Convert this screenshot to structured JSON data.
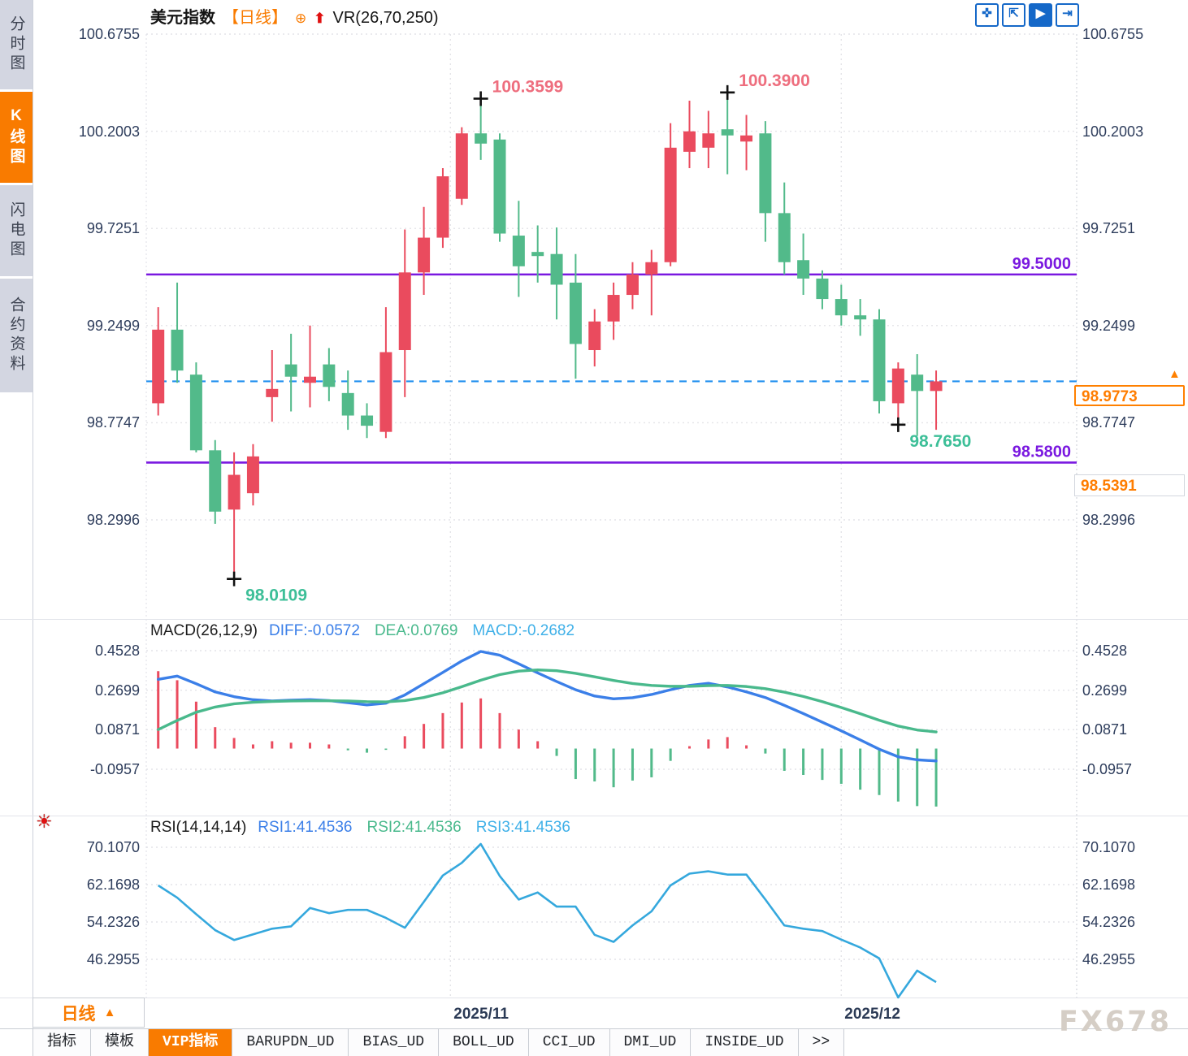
{
  "app": {
    "watermark": "FX678"
  },
  "colors": {
    "up": "#ea4b5e",
    "down": "#52ba8a",
    "accent_orange": "#f97b00",
    "purple": "#7a18e0",
    "dashed_blue": "#1f8fef",
    "diff_blue": "#3b7fe8",
    "dea_green": "#49b98c",
    "macd_cyan": "#3fb0e8",
    "rsi_line": "#35a8dd",
    "annotation_pink": "#ee6e7e",
    "annotation_green": "#3dbf98",
    "axis_text": "#2e3d5c",
    "grid": "#e4e4e8"
  },
  "sidebar": {
    "items": [
      {
        "label": "分时图",
        "active": false
      },
      {
        "label": "K线图",
        "active": true
      },
      {
        "label": "闪电图",
        "active": false
      },
      {
        "label": "合约资料",
        "active": false
      }
    ]
  },
  "header": {
    "symbol": "美元指数",
    "period": "【日线】",
    "add_icon": "⊕",
    "arrow_icon": "⬆",
    "indicator": "VR(26,70,250)"
  },
  "toolbar": {
    "icons": [
      {
        "name": "pan-crosshair-icon",
        "glyph": "✜",
        "active": false
      },
      {
        "name": "axis-scale-icon",
        "glyph": "⇱",
        "active": false
      },
      {
        "name": "auto-scroll-icon",
        "glyph": "▶",
        "active": true
      },
      {
        "name": "scroll-to-end-icon",
        "glyph": "⇥",
        "active": false
      }
    ]
  },
  "right_panel": {
    "current_price": "98.9773",
    "secondary_price": "98.5391"
  },
  "bottom": {
    "period_selector": "日线",
    "period_arrow": "▲",
    "tabs": [
      {
        "label": "指标",
        "active": false
      },
      {
        "label": "模板",
        "active": false
      },
      {
        "label": "VIP指标",
        "active": true
      },
      {
        "label": "BARUPDN_UD",
        "active": false
      },
      {
        "label": "BIAS_UD",
        "active": false
      },
      {
        "label": "BOLL_UD",
        "active": false
      },
      {
        "label": "CCI_UD",
        "active": false
      },
      {
        "label": "DMI_UD",
        "active": false
      },
      {
        "label": "INSIDE_UD",
        "active": false
      },
      {
        "label": ">>",
        "active": false
      }
    ]
  },
  "chart_data": [
    {
      "type": "candlestick",
      "title": "美元指数 日线",
      "y_ticks": [
        100.6755,
        100.2003,
        99.7251,
        99.2499,
        98.7747,
        98.2996
      ],
      "ohlc_order": [
        "open",
        "high",
        "low",
        "close"
      ],
      "candles": [
        [
          98.87,
          99.34,
          98.81,
          99.23
        ],
        [
          99.23,
          99.46,
          98.97,
          99.03
        ],
        [
          99.01,
          99.07,
          98.63,
          98.64
        ],
        [
          98.64,
          98.69,
          98.28,
          98.34
        ],
        [
          98.35,
          98.63,
          98.0109,
          98.52
        ],
        [
          98.43,
          98.67,
          98.37,
          98.61
        ],
        [
          98.9,
          99.13,
          98.78,
          98.94
        ],
        [
          99.06,
          99.21,
          98.83,
          99.0
        ],
        [
          98.97,
          99.25,
          98.85,
          99.0
        ],
        [
          99.06,
          99.14,
          98.88,
          98.95
        ],
        [
          98.92,
          99.03,
          98.74,
          98.81
        ],
        [
          98.81,
          98.87,
          98.7,
          98.76
        ],
        [
          98.73,
          99.34,
          98.7,
          99.12
        ],
        [
          99.13,
          99.72,
          98.9,
          99.51
        ],
        [
          99.51,
          99.83,
          99.4,
          99.68
        ],
        [
          99.68,
          100.02,
          99.63,
          99.98
        ],
        [
          99.87,
          100.22,
          99.84,
          100.19
        ],
        [
          100.19,
          100.3599,
          100.06,
          100.14
        ],
        [
          100.16,
          100.19,
          99.66,
          99.7
        ],
        [
          99.69,
          99.86,
          99.39,
          99.54
        ],
        [
          99.61,
          99.74,
          99.46,
          99.59
        ],
        [
          99.6,
          99.73,
          99.28,
          99.45
        ],
        [
          99.46,
          99.6,
          98.99,
          99.16
        ],
        [
          99.13,
          99.33,
          99.05,
          99.27
        ],
        [
          99.27,
          99.46,
          99.18,
          99.4
        ],
        [
          99.4,
          99.56,
          99.33,
          99.5
        ],
        [
          99.5,
          99.62,
          99.3,
          99.56
        ],
        [
          99.56,
          100.24,
          99.54,
          100.12
        ],
        [
          100.1,
          100.35,
          100.02,
          100.2
        ],
        [
          100.12,
          100.3,
          100.02,
          100.19
        ],
        [
          100.21,
          100.39,
          99.99,
          100.18
        ],
        [
          100.15,
          100.28,
          100.01,
          100.18
        ],
        [
          100.19,
          100.25,
          99.66,
          99.8
        ],
        [
          99.8,
          99.95,
          99.5,
          99.56
        ],
        [
          99.57,
          99.7,
          99.4,
          99.48
        ],
        [
          99.48,
          99.52,
          99.33,
          99.38
        ],
        [
          99.38,
          99.45,
          99.25,
          99.3
        ],
        [
          99.3,
          99.38,
          99.2,
          99.28
        ],
        [
          99.28,
          99.33,
          98.82,
          98.88
        ],
        [
          98.87,
          99.07,
          98.765,
          99.04
        ],
        [
          99.01,
          99.11,
          98.71,
          98.93
        ],
        [
          98.93,
          99.03,
          98.74,
          98.9773
        ]
      ],
      "x_gridlines": [
        {
          "label": "2025/11",
          "index": 15.4
        },
        {
          "label": "2025/12",
          "index": 36.0
        }
      ],
      "hlines": [
        {
          "value": 99.5,
          "label": "99.5000"
        },
        {
          "value": 98.58,
          "label": "98.5800"
        }
      ],
      "last_price_line": {
        "value": 98.9773
      },
      "annotations": [
        {
          "text": "98.0109",
          "index": 4,
          "price": 98.0109,
          "kind": "low"
        },
        {
          "text": "100.3599",
          "index": 17,
          "price": 100.3599,
          "kind": "high"
        },
        {
          "text": "100.3900",
          "index": 30,
          "price": 100.39,
          "kind": "high"
        },
        {
          "text": "98.7650",
          "index": 39,
          "price": 98.765,
          "kind": "low"
        }
      ]
    },
    {
      "type": "macd",
      "name": "MACD(26,12,9)",
      "legend": [
        {
          "label": "DIFF:-0.0572",
          "series": "diff"
        },
        {
          "label": "DEA:0.0769",
          "series": "dea"
        },
        {
          "label": "MACD:-0.2682",
          "series": "macd"
        }
      ],
      "y_ticks": [
        0.4528,
        0.2699,
        0.0871,
        -0.0957
      ],
      "diff": [
        0.32,
        0.335,
        0.3,
        0.262,
        0.24,
        0.226,
        0.22,
        0.224,
        0.226,
        0.222,
        0.212,
        0.202,
        0.21,
        0.248,
        0.3,
        0.352,
        0.405,
        0.449,
        0.432,
        0.392,
        0.35,
        0.31,
        0.272,
        0.243,
        0.23,
        0.235,
        0.25,
        0.272,
        0.292,
        0.302,
        0.285,
        0.262,
        0.236,
        0.2,
        0.162,
        0.122,
        0.082,
        0.04,
        -0.003,
        -0.038,
        -0.052,
        -0.0572
      ],
      "dea": [
        0.088,
        0.13,
        0.168,
        0.192,
        0.207,
        0.214,
        0.218,
        0.22,
        0.221,
        0.221,
        0.22,
        0.217,
        0.216,
        0.222,
        0.236,
        0.258,
        0.286,
        0.316,
        0.342,
        0.358,
        0.364,
        0.36,
        0.348,
        0.332,
        0.315,
        0.301,
        0.292,
        0.288,
        0.288,
        0.291,
        0.292,
        0.287,
        0.277,
        0.261,
        0.241,
        0.217,
        0.19,
        0.161,
        0.131,
        0.104,
        0.086,
        0.0769
      ],
      "histogram": [
        0.358,
        0.316,
        0.217,
        0.099,
        0.049,
        0.019,
        0.034,
        0.027,
        0.027,
        0.019,
        -0.008,
        -0.019,
        -0.006,
        0.057,
        0.114,
        0.164,
        0.213,
        0.232,
        0.164,
        0.088,
        0.034,
        -0.034,
        -0.141,
        -0.152,
        -0.179,
        -0.148,
        -0.133,
        -0.057,
        0.011,
        0.042,
        0.053,
        0.015,
        -0.023,
        -0.103,
        -0.122,
        -0.145,
        -0.163,
        -0.19,
        -0.215,
        -0.245,
        -0.266,
        -0.2682
      ]
    },
    {
      "type": "rsi",
      "name": "RSI(14,14,14)",
      "legend": [
        {
          "label": "RSI1:41.4536",
          "series": "diff"
        },
        {
          "label": "RSI2:41.4536",
          "series": "dea"
        },
        {
          "label": "RSI3:41.4536",
          "series": "macd"
        }
      ],
      "y_ticks": [
        70.107,
        62.1698,
        54.2326,
        46.2955
      ],
      "rsi": [
        62.0,
        59.4,
        55.9,
        52.5,
        50.4,
        51.6,
        52.8,
        53.3,
        57.2,
        56.1,
        56.8,
        56.8,
        55.1,
        53.0,
        58.5,
        64.1,
        66.8,
        70.8,
        64.0,
        59.0,
        60.5,
        57.5,
        57.5,
        51.5,
        50.0,
        53.5,
        56.5,
        62.0,
        64.5,
        65.0,
        64.3,
        64.3,
        59.0,
        53.5,
        52.8,
        52.3,
        50.5,
        48.8,
        46.5,
        38.2,
        43.9,
        41.4536
      ]
    }
  ]
}
